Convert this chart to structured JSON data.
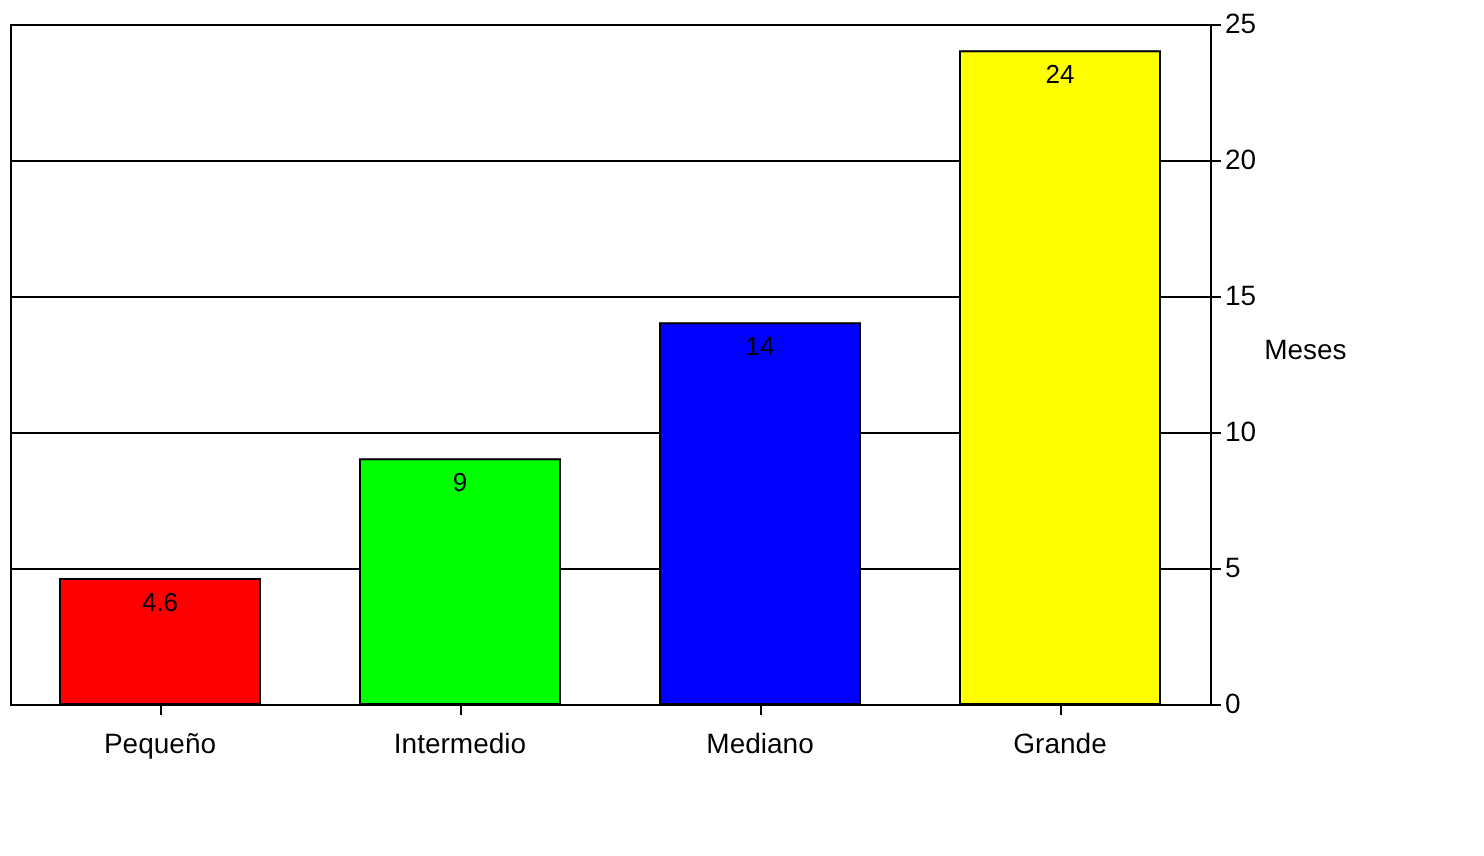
{
  "chart_data": {
    "type": "bar",
    "ylabel": "Meses",
    "categories": [
      "Pequeño",
      "Intermedio",
      "Mediano",
      "Grande"
    ],
    "values": [
      4.6,
      9,
      14,
      24
    ],
    "colors": [
      "#ff0000",
      "#00ff00",
      "#0000ff",
      "#ffff00"
    ],
    "ylim": [
      0,
      25
    ],
    "yticks": [
      0,
      5,
      10,
      15,
      20,
      25
    ],
    "grid": "y",
    "data_labels": true
  }
}
